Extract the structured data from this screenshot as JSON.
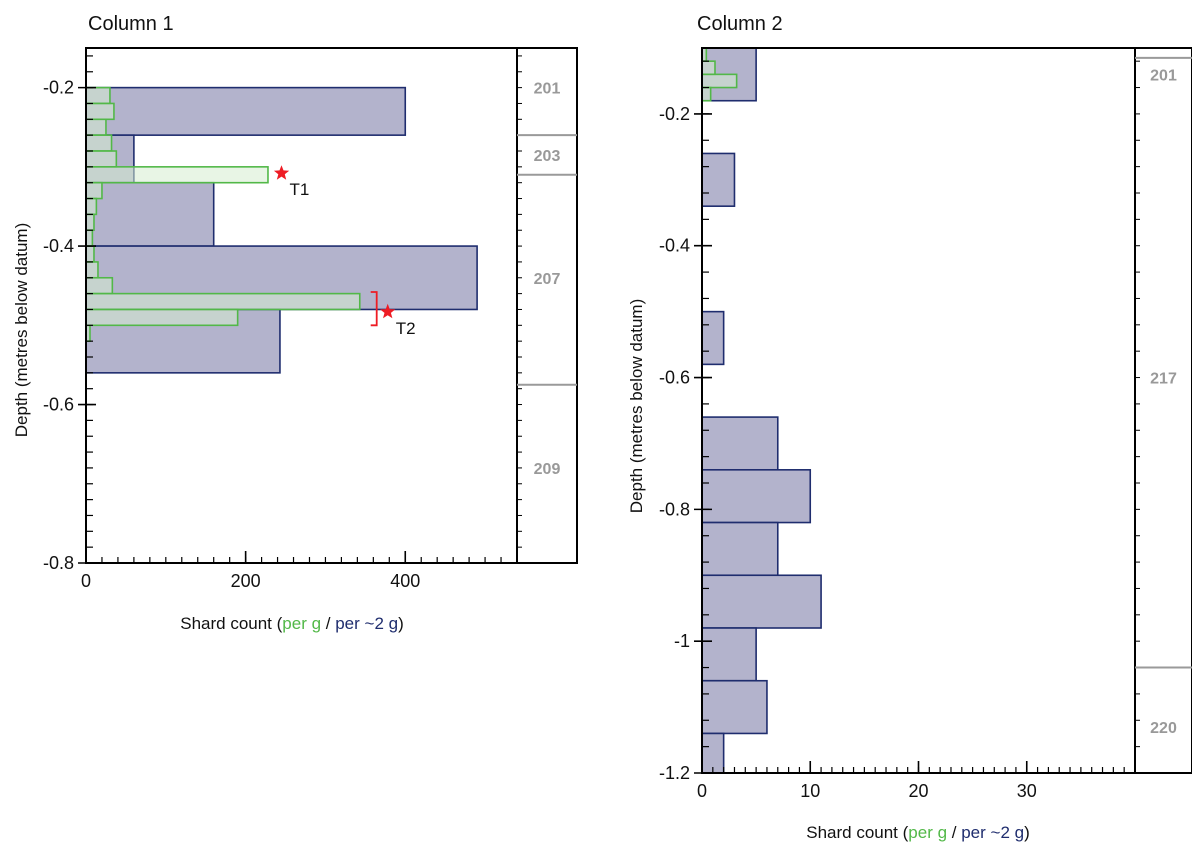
{
  "colors": {
    "blue_fill": "#b3b3cc",
    "blue_stroke": "#1f2d6e",
    "green_fill": "#d6ecd0",
    "green_stroke": "#52b848",
    "unit_line": "#9a9a9a",
    "unit_text": "#999999",
    "star": "#ee1c24",
    "axis": "#000000"
  },
  "chart_data": [
    {
      "type": "bar",
      "orientation": "horizontal",
      "title": "Column 1",
      "ylabel": "Depth (metres below datum)",
      "xlabel": {
        "prefix": "Shard count (",
        "green": "per g",
        "sep": " / ",
        "blue": "per ~2 g",
        "suffix": ")"
      },
      "xlim": [
        0,
        540
      ],
      "ylim": [
        -0.8,
        -0.15
      ],
      "xticks": [
        "0",
        "200",
        "400"
      ],
      "xtick_values": [
        0,
        200,
        400
      ],
      "yticks": [
        "-0.2",
        "-0.4",
        "-0.6",
        "-0.8"
      ],
      "ytick_values": [
        -0.2,
        -0.4,
        -0.6,
        -0.8
      ],
      "y_minor_step": 0.02,
      "series": [
        {
          "name": "per ~2 g",
          "color": "blue",
          "bars": [
            {
              "top": -0.2,
              "bottom": -0.26,
              "value": 400
            },
            {
              "top": -0.26,
              "bottom": -0.32,
              "value": 60
            },
            {
              "top": -0.32,
              "bottom": -0.4,
              "value": 160
            },
            {
              "top": -0.4,
              "bottom": -0.48,
              "value": 490
            },
            {
              "top": -0.48,
              "bottom": -0.56,
              "value": 243
            }
          ]
        },
        {
          "name": "per g",
          "color": "green",
          "bars": [
            {
              "top": -0.2,
              "bottom": -0.22,
              "value": 30
            },
            {
              "top": -0.22,
              "bottom": -0.24,
              "value": 35
            },
            {
              "top": -0.24,
              "bottom": -0.26,
              "value": 25
            },
            {
              "top": -0.26,
              "bottom": -0.28,
              "value": 32
            },
            {
              "top": -0.28,
              "bottom": -0.3,
              "value": 38
            },
            {
              "top": -0.3,
              "bottom": -0.32,
              "value": 228
            },
            {
              "top": -0.32,
              "bottom": -0.34,
              "value": 20
            },
            {
              "top": -0.34,
              "bottom": -0.36,
              "value": 13
            },
            {
              "top": -0.36,
              "bottom": -0.38,
              "value": 10
            },
            {
              "top": -0.38,
              "bottom": -0.4,
              "value": 8
            },
            {
              "top": -0.4,
              "bottom": -0.42,
              "value": 10
            },
            {
              "top": -0.42,
              "bottom": -0.44,
              "value": 15
            },
            {
              "top": -0.44,
              "bottom": -0.46,
              "value": 33
            },
            {
              "top": -0.46,
              "bottom": -0.48,
              "value": 343
            },
            {
              "top": -0.48,
              "bottom": -0.5,
              "value": 190
            },
            {
              "top": -0.5,
              "bottom": -0.52,
              "value": 5
            }
          ]
        }
      ],
      "annotations": [
        {
          "label": "T1",
          "x": 245,
          "y": -0.308,
          "bracket": null
        },
        {
          "label": "T2",
          "x": 378,
          "y": -0.483,
          "bracket": [
            -0.458,
            -0.5
          ]
        }
      ],
      "units": {
        "boundaries": [
          -0.26,
          -0.31,
          -0.575
        ],
        "labels": [
          {
            "text": "201",
            "y": -0.2
          },
          {
            "text": "203",
            "y": -0.285
          },
          {
            "text": "207",
            "y": -0.44
          },
          {
            "text": "209",
            "y": -0.68
          }
        ]
      }
    },
    {
      "type": "bar",
      "orientation": "horizontal",
      "title": "Column 2",
      "ylabel": "Depth (metres below datum)",
      "xlabel": {
        "prefix": "Shard count (",
        "green": "per g",
        "sep": " / ",
        "blue": "per ~2 g",
        "suffix": ")"
      },
      "xlim": [
        0,
        40
      ],
      "ylim": [
        -1.2,
        -0.1
      ],
      "xticks": [
        "0",
        "10",
        "20",
        "30"
      ],
      "xtick_values": [
        0,
        10,
        20,
        30
      ],
      "yticks": [
        "-0.2",
        "-0.4",
        "-0.6",
        "-0.8",
        "-1",
        "-1.2"
      ],
      "ytick_values": [
        -0.2,
        -0.4,
        -0.6,
        -0.8,
        -1,
        -1.2
      ],
      "y_minor_step": 0.04,
      "series": [
        {
          "name": "per ~2 g",
          "color": "blue",
          "bars": [
            {
              "top": -0.1,
              "bottom": -0.18,
              "value": 5
            },
            {
              "top": -0.26,
              "bottom": -0.34,
              "value": 3
            },
            {
              "top": -0.5,
              "bottom": -0.58,
              "value": 2
            },
            {
              "top": -0.66,
              "bottom": -0.74,
              "value": 7
            },
            {
              "top": -0.74,
              "bottom": -0.82,
              "value": 10
            },
            {
              "top": -0.82,
              "bottom": -0.9,
              "value": 7
            },
            {
              "top": -0.9,
              "bottom": -0.98,
              "value": 11
            },
            {
              "top": -0.98,
              "bottom": -1.06,
              "value": 5
            },
            {
              "top": -1.06,
              "bottom": -1.14,
              "value": 6
            },
            {
              "top": -1.14,
              "bottom": -1.2,
              "value": 2
            }
          ]
        },
        {
          "name": "per g",
          "color": "green",
          "bars": [
            {
              "top": -0.1,
              "bottom": -0.12,
              "value": 0.4
            },
            {
              "top": -0.12,
              "bottom": -0.14,
              "value": 1.2
            },
            {
              "top": -0.14,
              "bottom": -0.16,
              "value": 3.2
            },
            {
              "top": -0.16,
              "bottom": -0.18,
              "value": 0.8
            }
          ]
        }
      ],
      "annotations": [],
      "units": {
        "boundaries": [
          -0.115,
          -1.04
        ],
        "labels": [
          {
            "text": "201",
            "y": -0.14
          },
          {
            "text": "217",
            "y": -0.6
          },
          {
            "text": "220",
            "y": -1.13
          }
        ]
      }
    }
  ]
}
